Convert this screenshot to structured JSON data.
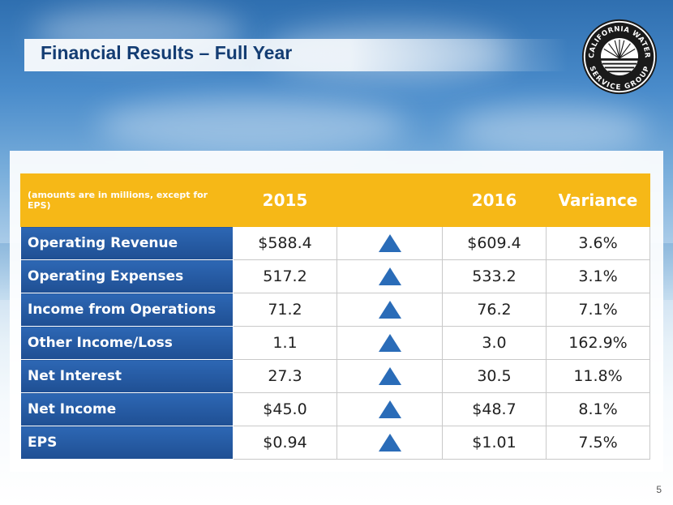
{
  "slide": {
    "title": "Financial Results – Full Year",
    "page_number": "5"
  },
  "logo": {
    "text_top": "CALIFORNIA WATER",
    "text_bottom": "SERVICE GROUP"
  },
  "table": {
    "note": "(amounts are in millions, except for EPS)",
    "col_2015": "2015",
    "col_2016": "2016",
    "col_variance": "Variance",
    "rows": [
      {
        "label": "Operating Revenue",
        "v2015": "$588.4",
        "v2016": "$609.4",
        "variance": "3.6%",
        "trend": "up"
      },
      {
        "label": "Operating Expenses",
        "v2015": "517.2",
        "v2016": "533.2",
        "variance": "3.1%",
        "trend": "up"
      },
      {
        "label": "Income from Operations",
        "v2015": "71.2",
        "v2016": "76.2",
        "variance": "7.1%",
        "trend": "up"
      },
      {
        "label": "Other Income/Loss",
        "v2015": "1.1",
        "v2016": "3.0",
        "variance": "162.9%",
        "trend": "up"
      },
      {
        "label": "Net Interest",
        "v2015": "27.3",
        "v2016": "30.5",
        "variance": "11.8%",
        "trend": "up"
      },
      {
        "label": "Net Income",
        "v2015": "$45.0",
        "v2016": "$48.7",
        "variance": "8.1%",
        "trend": "up"
      },
      {
        "label": "EPS",
        "v2015": "$0.94",
        "v2016": "$1.01",
        "variance": "7.5%",
        "trend": "up"
      }
    ]
  },
  "colors": {
    "title": "#143d73",
    "header_bg": "#f6b817",
    "label_bg": "#2d67b4",
    "arrow": "#2a6cb8"
  }
}
